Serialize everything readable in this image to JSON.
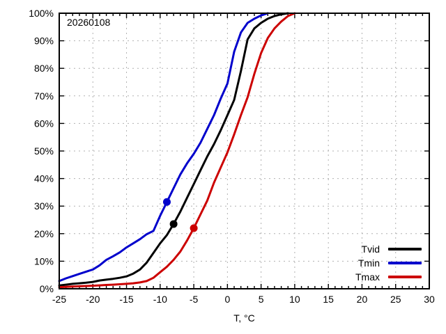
{
  "chart": {
    "date_label": "20260108",
    "xlabel": "T, °C"
  },
  "colors": {
    "background": "#ffffff",
    "axis": "#000000",
    "grid": "#b0b0b0",
    "text": "#000000"
  },
  "chart_data": {
    "type": "line",
    "title": "",
    "subtitle_annotation": "20260108",
    "xlabel": "T, °C",
    "ylabel": "",
    "xlim": [
      -25,
      30
    ],
    "ylim": [
      0,
      100
    ],
    "x_major_step": 5,
    "x_minor_step": 1,
    "y_major_step": 10,
    "grid": "dashed",
    "legend_position": "inside-bottom-right",
    "x_tick_labels": [
      "-25",
      "-20",
      "-15",
      "-10",
      "-5",
      "0",
      "5",
      "10",
      "15",
      "20",
      "25",
      "30"
    ],
    "y_tick_labels": [
      "0%",
      "10%",
      "20%",
      "30%",
      "40%",
      "50%",
      "60%",
      "70%",
      "80%",
      "90%",
      "100%"
    ],
    "series": [
      {
        "name": "Tvid",
        "color": "#000000",
        "marker_point": {
          "x": -8,
          "y": 23.5
        },
        "points": [
          [
            -25,
            1.2
          ],
          [
            -24,
            1.5
          ],
          [
            -23,
            1.8
          ],
          [
            -22,
            2.0
          ],
          [
            -21,
            2.2
          ],
          [
            -20,
            2.5
          ],
          [
            -19,
            3.0
          ],
          [
            -18,
            3.3
          ],
          [
            -17,
            3.6
          ],
          [
            -16,
            4.0
          ],
          [
            -15,
            4.5
          ],
          [
            -14,
            5.5
          ],
          [
            -13,
            7.0
          ],
          [
            -12,
            9.5
          ],
          [
            -11,
            13.0
          ],
          [
            -10,
            16.5
          ],
          [
            -9,
            19.5
          ],
          [
            -8,
            23.5
          ],
          [
            -7,
            28.0
          ],
          [
            -6,
            33.0
          ],
          [
            -5,
            38.0
          ],
          [
            -4,
            43.0
          ],
          [
            -3,
            48.0
          ],
          [
            -2,
            52.5
          ],
          [
            -1,
            57.5
          ],
          [
            0,
            63.0
          ],
          [
            1,
            68.5
          ],
          [
            2,
            79.0
          ],
          [
            3,
            90.5
          ],
          [
            4,
            94.5
          ],
          [
            5,
            96.5
          ],
          [
            6,
            98.0
          ],
          [
            7,
            99.0
          ],
          [
            8,
            99.6
          ],
          [
            9,
            100.0
          ]
        ]
      },
      {
        "name": "Tmin",
        "color": "#0000cc",
        "marker_point": {
          "x": -9,
          "y": 31.5
        },
        "points": [
          [
            -25,
            2.8
          ],
          [
            -24,
            3.8
          ],
          [
            -23,
            4.6
          ],
          [
            -22,
            5.4
          ],
          [
            -21,
            6.2
          ],
          [
            -20,
            7.0
          ],
          [
            -19,
            8.5
          ],
          [
            -18,
            10.5
          ],
          [
            -17,
            11.8
          ],
          [
            -16,
            13.2
          ],
          [
            -15,
            15.0
          ],
          [
            -14,
            16.5
          ],
          [
            -13,
            18.0
          ],
          [
            -12,
            19.8
          ],
          [
            -11,
            21.0
          ],
          [
            -10,
            26.5
          ],
          [
            -9,
            31.5
          ],
          [
            -8,
            36.5
          ],
          [
            -7,
            41.5
          ],
          [
            -6,
            45.5
          ],
          [
            -5,
            49.0
          ],
          [
            -4,
            53.0
          ],
          [
            -3,
            58.0
          ],
          [
            -2,
            63.0
          ],
          [
            -1,
            69.0
          ],
          [
            0,
            74.5
          ],
          [
            1,
            86.0
          ],
          [
            2,
            93.0
          ],
          [
            3,
            96.5
          ],
          [
            4,
            98.0
          ],
          [
            5,
            99.2
          ],
          [
            6,
            100.0
          ]
        ]
      },
      {
        "name": "Tmax",
        "color": "#cc0000",
        "marker_point": {
          "x": -5,
          "y": 22
        },
        "points": [
          [
            -25,
            0.6
          ],
          [
            -24,
            0.7
          ],
          [
            -23,
            0.8
          ],
          [
            -22,
            0.9
          ],
          [
            -21,
            1.0
          ],
          [
            -20,
            1.1
          ],
          [
            -19,
            1.25
          ],
          [
            -18,
            1.4
          ],
          [
            -17,
            1.5
          ],
          [
            -16,
            1.65
          ],
          [
            -15,
            1.8
          ],
          [
            -14,
            2.0
          ],
          [
            -13,
            2.3
          ],
          [
            -12,
            2.8
          ],
          [
            -11,
            4.0
          ],
          [
            -10,
            6.0
          ],
          [
            -9,
            8.0
          ],
          [
            -8,
            10.5
          ],
          [
            -7,
            13.5
          ],
          [
            -6,
            17.5
          ],
          [
            -5,
            22.0
          ],
          [
            -4,
            27.0
          ],
          [
            -3,
            32.0
          ],
          [
            -2,
            38.5
          ],
          [
            -1,
            44.0
          ],
          [
            0,
            49.5
          ],
          [
            1,
            56.0
          ],
          [
            2,
            63.0
          ],
          [
            3,
            69.5
          ],
          [
            4,
            78.0
          ],
          [
            5,
            85.5
          ],
          [
            6,
            91.0
          ],
          [
            7,
            94.5
          ],
          [
            8,
            97.0
          ],
          [
            9,
            99.0
          ],
          [
            10,
            100.0
          ]
        ]
      }
    ]
  }
}
